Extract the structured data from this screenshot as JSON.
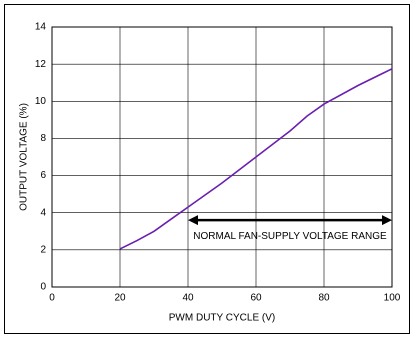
{
  "chart_data": {
    "type": "line",
    "x_label": "PWM DUTY CYCLE (V)",
    "y_label": "OUTPUT VOLTAGE (%)",
    "x": [
      20,
      25,
      30,
      35,
      40,
      50,
      60,
      70,
      75,
      80,
      90,
      100
    ],
    "series": [
      {
        "name": "Output voltage",
        "color": "#6a1fb0",
        "values": [
          2.05,
          2.5,
          3.0,
          3.65,
          4.3,
          5.6,
          7.0,
          8.4,
          9.2,
          9.85,
          10.85,
          11.75
        ]
      }
    ],
    "xlim": [
      0,
      100
    ],
    "xticks": [
      0,
      20,
      40,
      60,
      80,
      100
    ],
    "ylim": [
      0,
      14
    ],
    "yticks": [
      0,
      2,
      4,
      6,
      8,
      10,
      12,
      14
    ],
    "grid": true,
    "annotation": {
      "text": "NORMAL FAN-SUPPLY VOLTAGE RANGE",
      "x": [
        40,
        100
      ],
      "y": 3.6
    }
  }
}
